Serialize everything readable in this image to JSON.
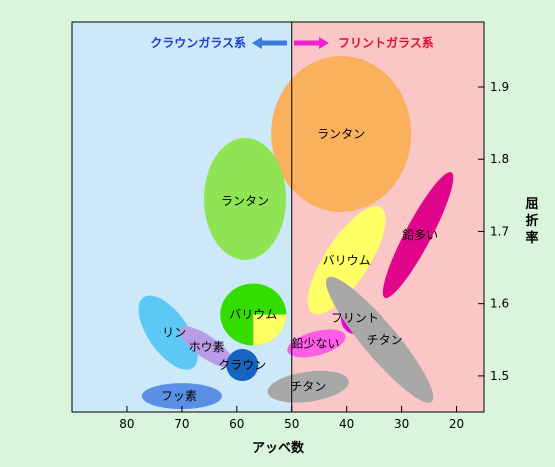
{
  "chart_data": {
    "type": "bubble",
    "x_axis": {
      "label": "アッベ数",
      "range": [
        90,
        15
      ],
      "reversed": true,
      "ticks": [
        80,
        70,
        60,
        50,
        40,
        30,
        20
      ]
    },
    "y_axis": {
      "label": "屈折率",
      "range": [
        1.45,
        1.99
      ],
      "ticks": [
        1.5,
        1.6,
        1.7,
        1.8,
        1.9
      ],
      "position": "right"
    },
    "divider_abbe": 50,
    "regions": [
      {
        "name": "クラウンガラス系",
        "color": "#2040d0",
        "bg": "#cde8f8",
        "direction": "left"
      },
      {
        "name": "フリントガラス系",
        "color": "#e01030",
        "bg": "#fbc6c6",
        "direction": "right"
      }
    ],
    "groups": [
      {
        "label": "ランタン",
        "abbe": 41,
        "nd": 1.835,
        "color": "#f9b15d",
        "rotate": 0
      },
      {
        "label": "ランタン",
        "abbe": 58.5,
        "nd": 1.745,
        "color": "#8ee453",
        "rotate": 0
      },
      {
        "label": "鉛多い",
        "abbe": 27,
        "nd": 1.695,
        "color": "#e0058a",
        "rotate": 28
      },
      {
        "label": "バリウム",
        "abbe": 40,
        "nd": 1.66,
        "color": "#ffff66",
        "rotate": 33
      },
      {
        "label": "バリウム",
        "abbe": 57,
        "nd": 1.585,
        "color": "#33dd00",
        "rotate": 0
      },
      {
        "label": "リン",
        "abbe": 72.5,
        "nd": 1.56,
        "color": "#5bc8f5",
        "rotate": -35
      },
      {
        "label": "ホウ素",
        "abbe": 65.5,
        "nd": 1.54,
        "color": "#b99ce6",
        "rotate": -55
      },
      {
        "label": "クラウン",
        "abbe": 59,
        "nd": 1.515,
        "color": "#1565c0",
        "rotate": 0
      },
      {
        "label": "フリント",
        "abbe": 38.5,
        "nd": 1.58,
        "color": "#e800d8",
        "rotate": 0
      },
      {
        "label": "鉛少ない",
        "abbe": 45.5,
        "nd": 1.545,
        "color": "#ff5ce8",
        "rotate": -15
      },
      {
        "label": "チタン",
        "abbe": 34,
        "nd": 1.55,
        "color": "#a8a8a8",
        "rotate": -40
      },
      {
        "label": "チタン",
        "abbe": 47,
        "nd": 1.485,
        "color": "#a8a8a8",
        "rotate": -8
      },
      {
        "label": "フッ素",
        "abbe": 70,
        "nd": 1.472,
        "color": "#5b8fe6",
        "rotate": 0
      }
    ]
  }
}
